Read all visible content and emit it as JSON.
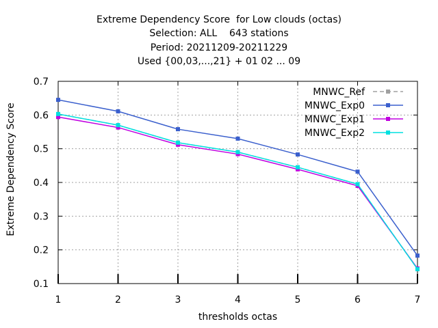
{
  "chart_data": {
    "type": "line",
    "title_lines": [
      "Extreme Dependency Score  for Low clouds (octas)",
      "Selection: ALL    643 stations",
      "Period: 20211209-20211229",
      "Used {00,03,...,21} + 01 02 ... 09"
    ],
    "xlabel": "thresholds octas",
    "ylabel": "Extreme Dependency Score",
    "x": [
      1,
      2,
      3,
      4,
      5,
      6,
      7
    ],
    "xlim": [
      1,
      7
    ],
    "ylim": [
      0.1,
      0.7
    ],
    "yticks": [
      "0.1",
      "0.2",
      "0.3",
      "0.4",
      "0.5",
      "0.6",
      "0.7"
    ],
    "xticks": [
      "1",
      "2",
      "3",
      "4",
      "5",
      "6",
      "7"
    ],
    "grid": true,
    "legend_position": "top-right",
    "series": [
      {
        "name": "MNWC_Ref",
        "color": "#a0a0a0",
        "dashed": true,
        "values": [
          0.603,
          0.57,
          0.518,
          0.49,
          0.445,
          0.395,
          0.143
        ]
      },
      {
        "name": "MNWC_Exp0",
        "color": "#3a5fcd",
        "dashed": false,
        "values": [
          0.645,
          0.611,
          0.558,
          0.53,
          0.483,
          0.432,
          0.183
        ]
      },
      {
        "name": "MNWC_Exp1",
        "color": "#c000e0",
        "dashed": false,
        "values": [
          0.594,
          0.563,
          0.512,
          0.484,
          0.439,
          0.39,
          0.145
        ]
      },
      {
        "name": "MNWC_Exp2",
        "color": "#00e0e0",
        "dashed": false,
        "values": [
          0.603,
          0.57,
          0.518,
          0.49,
          0.445,
          0.395,
          0.143
        ]
      }
    ]
  }
}
